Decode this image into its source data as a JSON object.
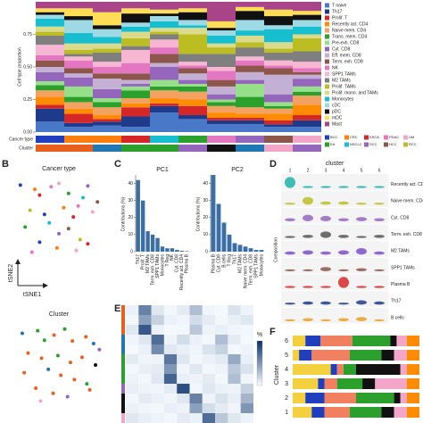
{
  "panel_a": {
    "ylabel": "Cell type proportion",
    "ylim": [
      0,
      1
    ],
    "yticks": [
      {
        "value": 0,
        "label": "0.00"
      },
      {
        "value": 0.25,
        "label": "0.25"
      },
      {
        "value": 0.5,
        "label": "0.50"
      },
      {
        "value": 0.75,
        "label": "0.75"
      }
    ],
    "cell_types": [
      {
        "name": "T naive",
        "color": "#4a78c8"
      },
      {
        "name": "Th17",
        "color": "#1e3a8a"
      },
      {
        "name": "Prolif. T",
        "color": "#d62728"
      },
      {
        "name": "Recently act. CD4",
        "color": "#ff8c00"
      },
      {
        "name": "Naive mem. CD4",
        "color": "#f4a261"
      },
      {
        "name": "Trans. mem. CD4",
        "color": "#2ca02c"
      },
      {
        "name": "Pre-exh. CD8",
        "color": "#98df8a"
      },
      {
        "name": "Cyt. CD8",
        "color": "#9467bd"
      },
      {
        "name": "Eff. mem. CD8",
        "color": "#c5b0d5"
      },
      {
        "name": "Term. exh. CD8",
        "color": "#8c564b"
      },
      {
        "name": "NK",
        "color": "#e377c2"
      },
      {
        "name": "SPP1 TAMs",
        "color": "#f7b6d2"
      },
      {
        "name": "M2 TAMs",
        "color": "#7f7f7f"
      },
      {
        "name": "Prolif. TAMs",
        "color": "#bcbd22"
      },
      {
        "name": "Prolif. mono. and TAMs",
        "color": "#dbdb8d"
      },
      {
        "name": "Monocytes",
        "color": "#17becf"
      },
      {
        "name": "cDC",
        "color": "#9edae5"
      },
      {
        "name": "pDC",
        "color": "#111111"
      },
      {
        "name": "mDC",
        "color": "#ffdd55"
      },
      {
        "name": "Mast",
        "color": "#aa4488"
      }
    ],
    "bars": [
      [
        0.08,
        0.1,
        0.03,
        0.06,
        0.05,
        0.04,
        0.03,
        0.07,
        0.04,
        0.05,
        0.04,
        0.08,
        0.07,
        0.03,
        0.04,
        0.06,
        0.03,
        0.02,
        0.03,
        0.05
      ],
      [
        0.04,
        0.03,
        0.07,
        0.04,
        0.05,
        0.04,
        0.08,
        0.07,
        0.03,
        0.04,
        0.06,
        0.03,
        0.02,
        0.03,
        0.05,
        0.08,
        0.1,
        0.03,
        0.06,
        0.05
      ],
      [
        0.05,
        0.03,
        0.02,
        0.03,
        0.06,
        0.04,
        0.03,
        0.07,
        0.08,
        0.04,
        0.05,
        0.04,
        0.07,
        0.03,
        0.04,
        0.05,
        0.06,
        0.03,
        0.1,
        0.08
      ],
      [
        0.04,
        0.08,
        0.07,
        0.03,
        0.04,
        0.06,
        0.03,
        0.02,
        0.03,
        0.05,
        0.08,
        0.1,
        0.03,
        0.06,
        0.05,
        0.04,
        0.03,
        0.07,
        0.04,
        0.05
      ],
      [
        0.15,
        0.05,
        0.02,
        0.04,
        0.06,
        0.03,
        0.05,
        0.1,
        0.03,
        0.07,
        0.05,
        0.06,
        0.04,
        0.02,
        0.03,
        0.05,
        0.04,
        0.02,
        0.03,
        0.06
      ],
      [
        0.1,
        0.03,
        0.07,
        0.05,
        0.06,
        0.04,
        0.02,
        0.03,
        0.05,
        0.04,
        0.02,
        0.03,
        0.06,
        0.15,
        0.05,
        0.02,
        0.04,
        0.06,
        0.03,
        0.05
      ],
      [
        0.06,
        0.03,
        0.02,
        0.04,
        0.05,
        0.03,
        0.02,
        0.04,
        0.06,
        0.05,
        0.07,
        0.03,
        0.1,
        0.05,
        0.03,
        0.06,
        0.04,
        0.02,
        0.05,
        0.15
      ],
      [
        0.06,
        0.03,
        0.02,
        0.03,
        0.05,
        0.08,
        0.1,
        0.03,
        0.06,
        0.05,
        0.04,
        0.03,
        0.07,
        0.04,
        0.05,
        0.04,
        0.08,
        0.07,
        0.03,
        0.04
      ],
      [
        0.04,
        0.02,
        0.03,
        0.05,
        0.04,
        0.02,
        0.03,
        0.06,
        0.15,
        0.05,
        0.02,
        0.04,
        0.06,
        0.03,
        0.05,
        0.1,
        0.03,
        0.07,
        0.05,
        0.06
      ],
      [
        0.04,
        0.05,
        0.04,
        0.08,
        0.07,
        0.03,
        0.04,
        0.06,
        0.03,
        0.02,
        0.03,
        0.05,
        0.08,
        0.1,
        0.03,
        0.06,
        0.05,
        0.04,
        0.03,
        0.07
      ]
    ],
    "row_labels": [
      "Cancer type",
      "Cluster"
    ],
    "cancer_types": [
      {
        "name": "BCC",
        "color": "#1f3fbf"
      },
      {
        "name": "CRC",
        "color": "#ff7f0e"
      },
      {
        "name": "ESCA",
        "color": "#d62728"
      },
      {
        "name": "PDAC",
        "color": "#e377c2"
      },
      {
        "name": "UM",
        "color": "#f4a6c8"
      },
      {
        "name": "EA",
        "color": "#2ca02c"
      },
      {
        "name": "NSCLC",
        "color": "#17becf"
      },
      {
        "name": "SCC",
        "color": "#9467bd"
      },
      {
        "name": "HCC",
        "color": "#8c564b"
      },
      {
        "name": "RCC",
        "color": "#bcbd22"
      }
    ],
    "cancer_type_row": [
      "BCC",
      "CRC",
      "CRC",
      "ESCA",
      "NSCLC",
      "EA",
      "PDAC",
      "SCC",
      "HCC",
      "UM"
    ],
    "cluster_colors": [
      "#e8601c",
      "#1f77b4",
      "#2ca02c",
      "#9467bd",
      "#111111",
      "#f4a6c8"
    ],
    "cluster_row": [
      1,
      1,
      2,
      3,
      3,
      4,
      5,
      2,
      6,
      4
    ]
  },
  "panel_b": {
    "letter": "B",
    "title_1": "Cancer type",
    "x_1": [
      1,
      2.5,
      3,
      4.2,
      5,
      6,
      7.5,
      8,
      9,
      2,
      3.5,
      5.5,
      6.5,
      7,
      8.5,
      1.5,
      4,
      5,
      6,
      7.2,
      3,
      4.8,
      8,
      2.2,
      6.8
    ],
    "y_1": [
      9,
      8.5,
      7.8,
      8.8,
      9.2,
      8,
      7.5,
      8.9,
      7,
      6,
      5.5,
      6.3,
      5.2,
      6.5,
      5.8,
      4,
      4.5,
      3.2,
      3.8,
      2.5,
      2.2,
      1.5,
      2,
      1,
      1.2
    ],
    "types_1": [
      "BCC",
      "CRC",
      "ESCA",
      "PDAC",
      "UM",
      "EA",
      "NSCLC",
      "SCC",
      "HCC",
      "RCC",
      "BCC",
      "CRC",
      "ESCA",
      "PDAC",
      "UM",
      "EA",
      "NSCLC",
      "SCC",
      "HCC",
      "RCC",
      "BCC",
      "CRC",
      "ESCA",
      "PDAC",
      "UM"
    ],
    "xlabel": "tSNE1",
    "ylabel": "tSNE2",
    "title_2": "Cluster",
    "x_2": [
      1.2,
      2.8,
      3.5,
      4.5,
      5.6,
      6.4,
      7.8,
      8.6,
      9.2,
      1.8,
      3.2,
      4.9,
      6.2,
      7.4,
      8.8,
      1.4,
      3.9,
      5.2,
      6.6,
      7.9,
      2.6,
      4.4,
      5.9,
      8.2,
      3.1
    ],
    "y_2": [
      8.8,
      9.1,
      8.0,
      8.6,
      9.3,
      7.9,
      8.4,
      7.6,
      6.9,
      6.5,
      5.9,
      6.2,
      5.4,
      6.0,
      5.1,
      4.2,
      4.6,
      3.9,
      3.4,
      2.9,
      2.4,
      1.8,
      1.4,
      2.2,
      0.9
    ],
    "clusters_2": [
      2,
      3,
      3,
      1,
      3,
      1,
      1,
      2,
      4,
      1,
      1,
      3,
      1,
      1,
      5,
      1,
      2,
      1,
      1,
      3,
      1,
      1,
      4,
      1,
      6
    ]
  },
  "panel_c": {
    "letter": "C",
    "ylabel": "Contributions (%)",
    "color": "#3a6ea5",
    "ylim": [
      0,
      45
    ],
    "yticks": [
      0,
      10,
      20,
      30,
      40
    ],
    "plots": [
      {
        "title": "PC1",
        "categories": [
          "Th17",
          "Prolif. T",
          "M2 TAMs",
          "Term. exh. CD8",
          "SPP1 TAMs",
          "Monocytes",
          "T Reg",
          "NK",
          "Cyt. CD8",
          "Recently act. CD4",
          "Plasma B"
        ],
        "values": [
          42,
          30,
          12,
          10,
          8,
          3,
          2,
          2,
          1,
          0.5,
          0.3
        ]
      },
      {
        "title": "PC2",
        "categories": [
          "Plasma B",
          "Cyt. CD8",
          "B cells",
          "T Reg",
          "Th17",
          "M2 TAMs",
          "Naive mem. CD4",
          "Term. exh. CD8",
          "SPP1 TAMs",
          "Monocytes"
        ],
        "values": [
          45,
          28,
          17,
          10,
          5,
          4,
          3,
          2,
          1,
          1
        ]
      }
    ]
  },
  "panel_d": {
    "letter": "D",
    "xlabel": "cluster",
    "ylabel": "Composition",
    "clusters": [
      1,
      2,
      3,
      4,
      5,
      6
    ],
    "rows": [
      "Recently act. CD4",
      "Naive mem. CD4",
      "Cyt. CD8",
      "Term. exh. CD8",
      "M2 TAMs",
      "SPP1 TAMs",
      "Plasma B",
      "Th17",
      "B cells"
    ],
    "row_colors": [
      "#20b2aa",
      "#bcbd22",
      "#9467bd",
      "#555555",
      "#7b4fc9",
      "#8c564b",
      "#d62728",
      "#1e3a8a",
      "#e8a020"
    ],
    "values": [
      [
        0.9,
        0.1,
        0.1,
        0.1,
        0.1,
        0.1
      ],
      [
        0.1,
        0.6,
        0.2,
        0.2,
        0.1,
        0.1
      ],
      [
        0.2,
        0.5,
        0.4,
        0.2,
        0.3,
        0.2
      ],
      [
        0.1,
        0.2,
        0.5,
        0.2,
        0.1,
        0.2
      ],
      [
        0.2,
        0.3,
        0.2,
        0.3,
        0.5,
        0.2
      ],
      [
        0.1,
        0.1,
        0.3,
        0.1,
        0.2,
        0.1
      ],
      [
        0.1,
        0.1,
        0.1,
        0.9,
        0.1,
        0.1
      ],
      [
        0.1,
        0.2,
        0.2,
        0.1,
        0.3,
        0.2
      ],
      [
        0.1,
        0.2,
        0.1,
        0.2,
        0.3,
        0.1
      ]
    ]
  },
  "panel_e": {
    "letter": "E",
    "colorbar_label": "%",
    "zlim": [
      0,
      100
    ],
    "row_clusters": [
      1,
      1,
      1,
      2,
      2,
      3,
      3,
      3,
      4,
      5,
      5,
      6
    ],
    "matrix": [
      [
        5,
        60,
        10,
        2,
        8,
        30,
        3,
        1,
        12,
        4
      ],
      [
        2,
        45,
        20,
        5,
        3,
        15,
        8,
        2,
        6,
        10
      ],
      [
        10,
        80,
        5,
        1,
        2,
        25,
        4,
        6,
        3,
        2
      ],
      [
        3,
        10,
        70,
        4,
        15,
        5,
        2,
        30,
        8,
        1
      ],
      [
        1,
        5,
        55,
        10,
        6,
        3,
        12,
        20,
        2,
        4
      ],
      [
        8,
        3,
        4,
        65,
        10,
        2,
        5,
        8,
        40,
        6
      ],
      [
        2,
        6,
        8,
        50,
        3,
        10,
        2,
        4,
        25,
        12
      ],
      [
        4,
        2,
        10,
        75,
        6,
        4,
        8,
        2,
        30,
        3
      ],
      [
        6,
        4,
        3,
        8,
        85,
        2,
        10,
        5,
        4,
        20
      ],
      [
        2,
        8,
        5,
        3,
        10,
        60,
        4,
        12,
        6,
        35
      ],
      [
        5,
        3,
        2,
        6,
        4,
        45,
        15,
        8,
        3,
        50
      ],
      [
        10,
        6,
        4,
        2,
        8,
        5,
        70,
        25,
        10,
        4
      ]
    ]
  },
  "panel_f": {
    "letter": "F",
    "ylabel": "Cluster",
    "clusters": [
      1,
      2,
      3,
      4,
      5,
      6
    ],
    "xlim": [
      0,
      1
    ],
    "segments": [
      {
        "color": "#f4d03f",
        "values": [
          0.15,
          0.1,
          0.2,
          0.3,
          0.05,
          0.1
        ]
      },
      {
        "color": "#1f3fbf",
        "values": [
          0.1,
          0.15,
          0.05,
          0.05,
          0.1,
          0.12
        ]
      },
      {
        "color": "#f08060",
        "values": [
          0.2,
          0.25,
          0.1,
          0.05,
          0.3,
          0.25
        ]
      },
      {
        "color": "#2ca02c",
        "values": [
          0.25,
          0.3,
          0.2,
          0.1,
          0.25,
          0.3
        ]
      },
      {
        "color": "#111111",
        "values": [
          0.1,
          0.05,
          0.1,
          0.35,
          0.1,
          0.05
        ]
      },
      {
        "color": "#f4a6c8",
        "values": [
          0.1,
          0.05,
          0.25,
          0.05,
          0.1,
          0.08
        ]
      },
      {
        "color": "#ff8c00",
        "values": [
          0.1,
          0.1,
          0.1,
          0.1,
          0.1,
          0.1
        ]
      }
    ]
  }
}
